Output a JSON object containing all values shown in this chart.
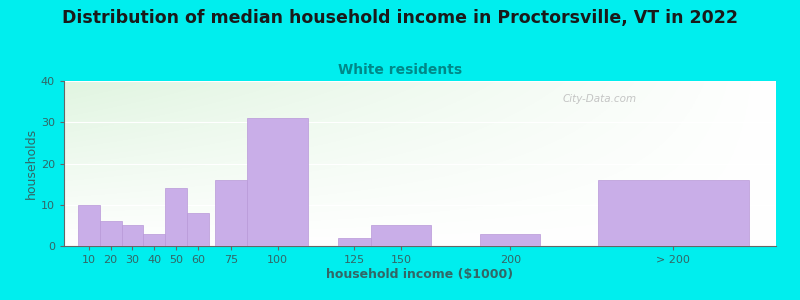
{
  "title": "Distribution of median household income in Proctorsville, VT in 2022",
  "subtitle": "White residents",
  "xlabel": "household income ($1000)",
  "ylabel": "households",
  "bar_labels": [
    "10",
    "20",
    "30",
    "40",
    "50",
    "60",
    "75",
    "100",
    "125",
    "150",
    "200",
    "> 200"
  ],
  "bar_values": [
    10,
    6,
    5,
    3,
    14,
    8,
    16,
    31,
    2,
    5,
    3,
    16
  ],
  "bar_color": "#c9aee8",
  "bar_edgecolor": "#b898d8",
  "background_color": "#00eeee",
  "title_fontsize": 12.5,
  "subtitle_fontsize": 10,
  "subtitle_color": "#008888",
  "ylabel_color": "#336666",
  "xlabel_color": "#336666",
  "tick_color": "#336666",
  "ylim": [
    0,
    40
  ],
  "yticks": [
    0,
    10,
    20,
    30,
    40
  ],
  "watermark": "City-Data.com",
  "bar_widths": [
    8,
    8,
    8,
    8,
    8,
    8,
    12,
    22,
    12,
    22,
    22,
    55
  ],
  "bar_lefts": [
    5,
    13,
    21,
    29,
    37,
    45,
    55,
    67,
    100,
    112,
    152,
    195
  ]
}
